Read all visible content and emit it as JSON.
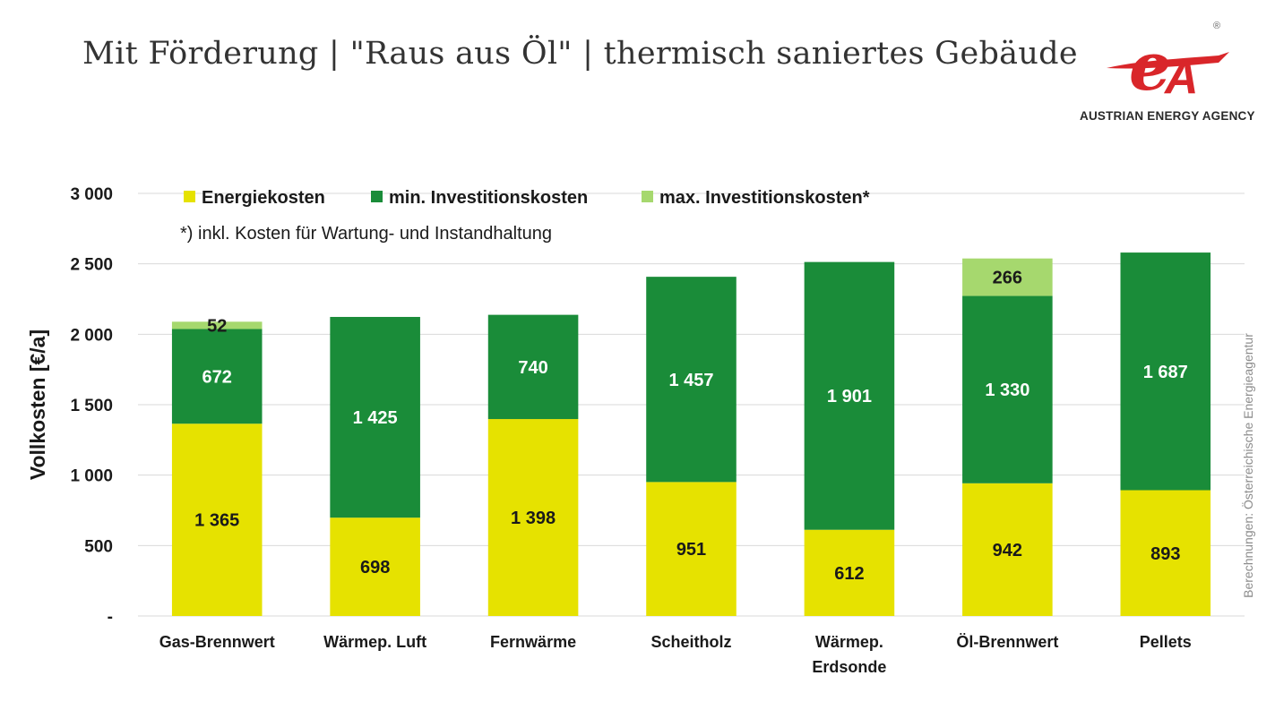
{
  "title": "Mit Förderung | \"Raus aus Öl\" | thermisch saniertes Gebäude",
  "logo": {
    "text": "AUSTRIAN ENERGY AGENCY",
    "mark": "eA",
    "registered": "®",
    "color": "#d9262a"
  },
  "source_note": "Berechnungen: Österreichische Energieagentur",
  "chart_data": {
    "type": "bar",
    "stacked": true,
    "ylabel": "Vollkosten [€/a]",
    "xlabel": "",
    "ylim": [
      0,
      3000
    ],
    "yticks": [
      0,
      500,
      1000,
      1500,
      2000,
      2500,
      3000
    ],
    "ytick_labels": [
      "-",
      "500",
      "1 000",
      "1 500",
      "2 000",
      "2 500",
      "3 000"
    ],
    "grid": true,
    "legend_position": "top",
    "footnote": "*) inkl. Kosten für Wartung- und Instandhaltung",
    "categories": [
      "Gas-Brennwert",
      "Wärmep. Luft",
      "Fernwärme",
      "Scheitholz",
      "Wärmep. Erdsonde",
      "Öl-Brennwert",
      "Pellets"
    ],
    "category_labels": [
      [
        "Gas-Brennwert"
      ],
      [
        "Wärmep. Luft"
      ],
      [
        "Fernwärme"
      ],
      [
        "Scheitholz"
      ],
      [
        "Wärmep.",
        "Erdsonde"
      ],
      [
        "Öl-Brennwert"
      ],
      [
        "Pellets"
      ]
    ],
    "series": [
      {
        "name": "Energiekosten",
        "color": "#e6e200",
        "label_color": "#1a1a1a",
        "values": [
          1365,
          698,
          1398,
          951,
          612,
          942,
          893
        ],
        "labels": [
          "1 365",
          "698",
          "1 398",
          "951",
          "612",
          "942",
          "893"
        ]
      },
      {
        "name": "min. Investitionskosten",
        "color": "#1a8c39",
        "label_color": "#ffffff",
        "values": [
          672,
          1425,
          740,
          1457,
          1901,
          1330,
          1687
        ],
        "labels": [
          "672",
          "1 425",
          "740",
          "1 457",
          "1 901",
          "1 330",
          "1 687"
        ]
      },
      {
        "name": "max. Investitionskosten*",
        "color": "#a6d86e",
        "label_color": "#1a1a1a",
        "values": [
          52,
          0,
          0,
          0,
          0,
          266,
          0
        ],
        "labels": [
          "52",
          "",
          "",
          "",
          "",
          "266",
          ""
        ]
      }
    ]
  }
}
